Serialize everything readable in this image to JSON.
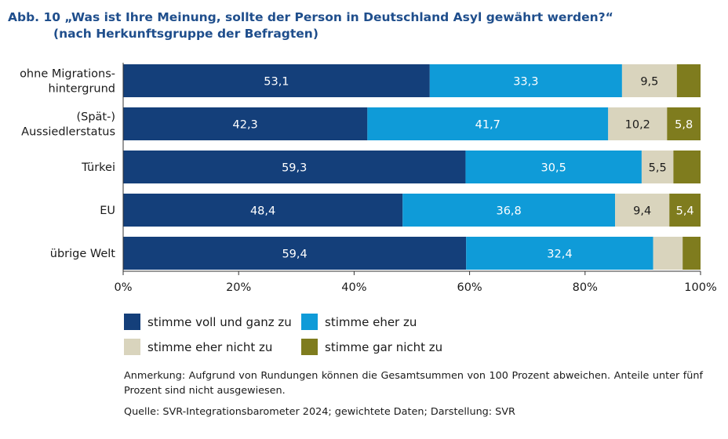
{
  "figure": {
    "title_line1": "Abb. 10 „Was ist Ihre Meinung, sollte der Person in Deutschland Asyl gewährt werden?“",
    "title_line2": "(nach Herkunftsgruppe der Befragten)",
    "note": "Anmerkung: Aufgrund von Rundungen können die Gesamtsummen von 100 Prozent abweichen. Anteile unter fünf Prozent sind nicht ausgewiesen.",
    "source": "Quelle: SVR-Integrationsbarometer 2024; gewichtete Daten; Darstellung: SVR"
  },
  "chart_data": {
    "type": "bar",
    "orientation": "horizontal",
    "stacked": true,
    "categories": [
      [
        "ohne Migrations-",
        "hintergrund"
      ],
      [
        "(Spät-)",
        "Aussiedlerstatus"
      ],
      [
        "Türkei"
      ],
      [
        "EU"
      ],
      [
        "übrige Welt"
      ]
    ],
    "series": [
      {
        "name": "stimme voll und ganz zu",
        "color": "#143f7a",
        "label_color": "#ffffff",
        "values": [
          53.1,
          42.3,
          59.3,
          48.4,
          59.4
        ],
        "labels": [
          "53,1",
          "42,3",
          "59,3",
          "48,4",
          "59,4"
        ]
      },
      {
        "name": "stimme eher zu",
        "color": "#0f9bd8",
        "label_color": "#ffffff",
        "values": [
          33.3,
          41.7,
          30.5,
          36.8,
          32.4
        ],
        "labels": [
          "33,3",
          "41,7",
          "30,5",
          "36,8",
          "32,4"
        ]
      },
      {
        "name": "stimme eher nicht zu",
        "color": "#d9d4bd",
        "label_color": "#1a1a1a",
        "values": [
          9.5,
          10.2,
          5.5,
          9.4,
          5.1
        ],
        "labels": [
          "9,5",
          "10,2",
          "5,5",
          "9,4",
          ""
        ]
      },
      {
        "name": "stimme gar nicht zu",
        "color": "#7f7c1e",
        "label_color": "#ffffff",
        "values": [
          4.1,
          5.8,
          4.7,
          5.4,
          3.1
        ],
        "labels": [
          "",
          "5,8",
          "",
          "5,4",
          ""
        ]
      }
    ],
    "xlim": [
      0,
      100
    ],
    "xticks": [
      "0%",
      "20%",
      "40%",
      "60%",
      "80%",
      "100%"
    ],
    "grid": false,
    "legend_position": "bottom"
  }
}
